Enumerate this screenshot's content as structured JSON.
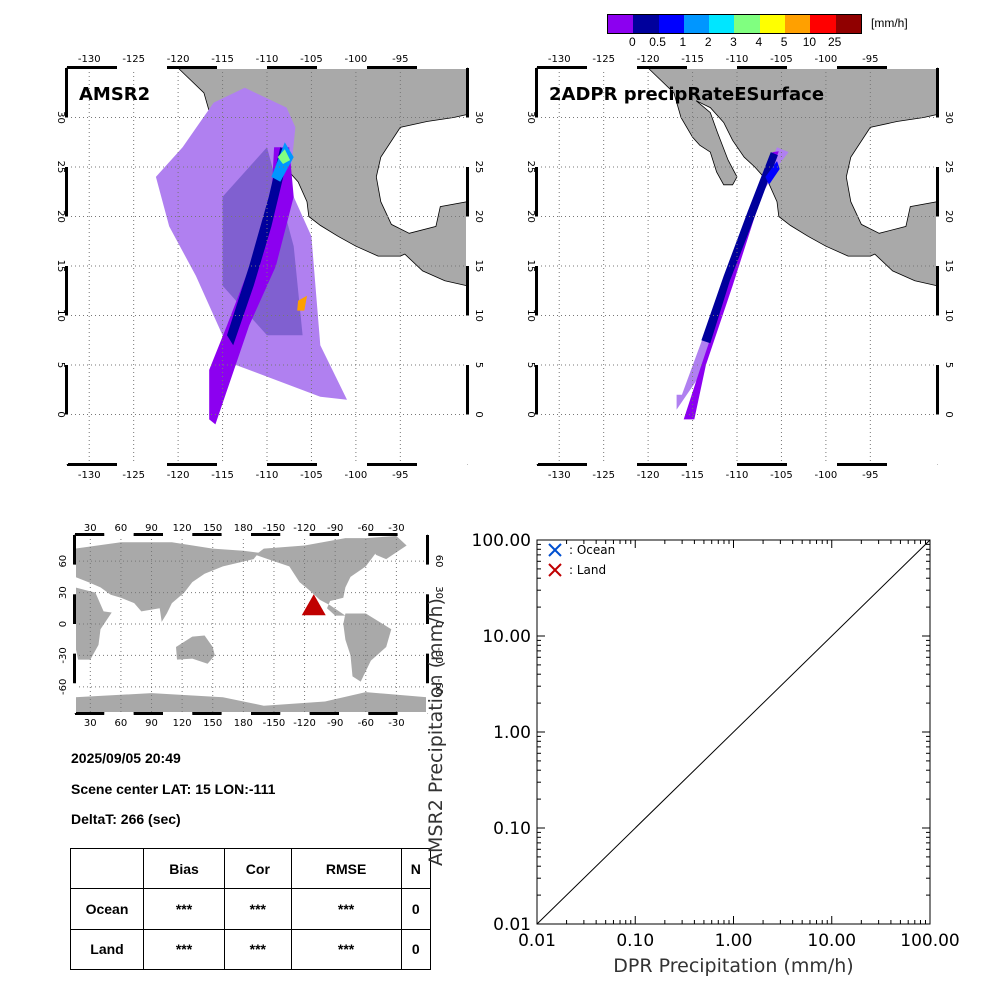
{
  "colorbar": {
    "unit": "[mm/h]",
    "ticks": [
      "0",
      "0.5",
      "1",
      "2",
      "3",
      "4",
      "5",
      "10",
      "25"
    ],
    "colors": [
      "#8c00f0",
      "#00009c",
      "#0000ff",
      "#0096ff",
      "#00e6ff",
      "#80ff80",
      "#ffff00",
      "#ffa000",
      "#ff0000",
      "#900000"
    ]
  },
  "colors": {
    "land": "#a9a9a9",
    "ocean": "#ffffff",
    "marker": "#c00000"
  },
  "map_left": {
    "title": "AMSR2",
    "lon_ticks": [
      "-130",
      "-125",
      "-120",
      "-115",
      "-110",
      "-105",
      "-100",
      "-95"
    ],
    "lat_ticks": [
      "0",
      "5",
      "10",
      "15",
      "20",
      "25",
      "30"
    ]
  },
  "map_right": {
    "title": "2ADPR precipRateESurface",
    "lon_ticks": [
      "-130",
      "-125",
      "-120",
      "-115",
      "-110",
      "-105",
      "-100",
      "-95"
    ],
    "lat_ticks": [
      "0",
      "5",
      "10",
      "15",
      "20",
      "25",
      "30"
    ]
  },
  "world_map": {
    "lon_ticks": [
      "30",
      "60",
      "90",
      "120",
      "150",
      "180",
      "-150",
      "-120",
      "-90",
      "-60",
      "-30"
    ],
    "lat_ticks": [
      "-60",
      "-30",
      "0",
      "30",
      "60"
    ],
    "marker": {
      "lon": -111,
      "lat": 15
    }
  },
  "info": {
    "datetime": "2025/09/05 20:49",
    "scene_center": "Scene center LAT: 15   LON:-111",
    "deltat": "DeltaT:  266 (sec)"
  },
  "stats_table": {
    "headers": [
      "",
      "Bias",
      "Cor",
      "RMSE",
      "N"
    ],
    "rows": [
      [
        "Ocean",
        "***",
        "***",
        "***",
        "0"
      ],
      [
        "Land",
        "***",
        "***",
        "***",
        "0"
      ]
    ]
  },
  "chart_data": {
    "type": "scatter",
    "xlabel": "DPR Precipitation (mm/h)",
    "ylabel": "AMSR2 Precipitation (mm/h)",
    "x_scale": "log",
    "y_scale": "log",
    "xlim": [
      0.01,
      100
    ],
    "ylim": [
      0.01,
      100
    ],
    "x_tick_labels": [
      "0.01",
      "0.10",
      "1.00",
      "10.00",
      "100.00"
    ],
    "y_tick_labels": [
      "0.01",
      "0.10",
      "1.00",
      "10.00",
      "100.00"
    ],
    "series": [
      {
        "name": ": Ocean",
        "marker": "x",
        "color": "#0050d0",
        "points": []
      },
      {
        "name": ": Land",
        "marker": "x",
        "color": "#c00000",
        "points": []
      }
    ],
    "reference_line": "1:1",
    "legend_position": "top-left"
  }
}
